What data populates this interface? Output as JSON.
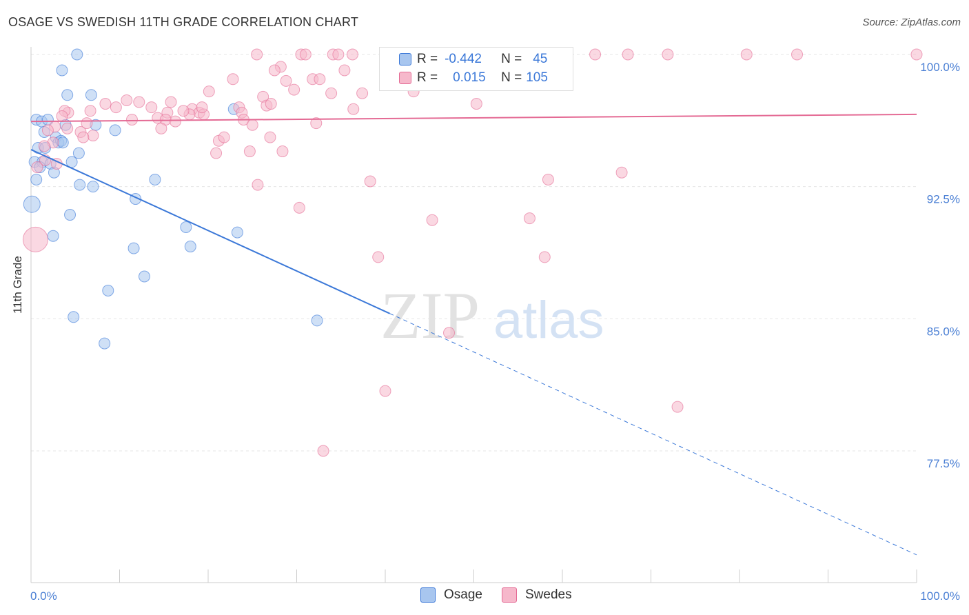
{
  "title": "OSAGE VS SWEDISH 11TH GRADE CORRELATION CHART",
  "source": "Source: ZipAtlas.com",
  "watermark": {
    "zip": "ZIP",
    "atlas": "atlas"
  },
  "legend_top": {
    "rows": [
      {
        "r_label": "R =",
        "r_value": "-0.442",
        "n_label": "N =",
        "n_value": "45",
        "color": "#a8c6ef"
      },
      {
        "r_label": "R =",
        "r_value": "0.015",
        "n_label": "N =",
        "n_value": "105",
        "color": "#f6b8cb"
      }
    ]
  },
  "legend_bottom": [
    {
      "label": "Osage",
      "color": "#a8c6ef"
    },
    {
      "label": "Swedes",
      "color": "#f6b8cb"
    }
  ],
  "colors": {
    "osage": "#3b78d8",
    "swedes": "#e46a94",
    "tick_text": "#4a7fd4"
  },
  "chart_data": {
    "type": "scatter",
    "title": "OSAGE VS SWEDISH 11TH GRADE CORRELATION CHART",
    "xlabel": "",
    "ylabel": "11th Grade",
    "xlim": [
      0,
      100
    ],
    "ylim": [
      71,
      100.5
    ],
    "x_tick_labels": [
      "0.0%",
      "100.0%"
    ],
    "y_ticks": [
      77.5,
      85.0,
      92.5,
      100.0
    ],
    "y_tick_labels": [
      "77.5%",
      "85.0%",
      "92.5%",
      "100.0%"
    ],
    "grid": true,
    "series": [
      {
        "name": "Osage",
        "color": "#a8c6ef",
        "stroke": "#3b78d8",
        "trend": {
          "x0": 0,
          "y0": 94.6,
          "x1": 40.5,
          "y1": 85.3,
          "dashed_to_x": 100,
          "dashed_to_y": 71.6
        },
        "points": [
          [
            5.2,
            100.0
          ],
          [
            3.5,
            99.1
          ],
          [
            4.1,
            97.7
          ],
          [
            6.8,
            97.7
          ],
          [
            0.6,
            96.3
          ],
          [
            1.2,
            96.2
          ],
          [
            1.9,
            96.3
          ],
          [
            3.9,
            96.0
          ],
          [
            7.3,
            96.0
          ],
          [
            9.5,
            95.7
          ],
          [
            1.5,
            95.6
          ],
          [
            2.8,
            95.3
          ],
          [
            3.1,
            95.0
          ],
          [
            3.4,
            95.1
          ],
          [
            3.6,
            95.0
          ],
          [
            0.8,
            94.7
          ],
          [
            1.6,
            94.7
          ],
          [
            5.4,
            94.4
          ],
          [
            0.4,
            93.9
          ],
          [
            1.3,
            93.9
          ],
          [
            2.2,
            93.8
          ],
          [
            4.6,
            93.9
          ],
          [
            1.0,
            93.6
          ],
          [
            2.6,
            93.3
          ],
          [
            0.6,
            92.9
          ],
          [
            5.5,
            92.6
          ],
          [
            7.0,
            92.5
          ],
          [
            14.0,
            92.9
          ],
          [
            11.8,
            91.8
          ],
          [
            0.1,
            91.5
          ],
          [
            4.4,
            90.9
          ],
          [
            17.5,
            90.2
          ],
          [
            23.3,
            89.9
          ],
          [
            2.5,
            89.7
          ],
          [
            11.6,
            89.0
          ],
          [
            18.0,
            89.1
          ],
          [
            12.8,
            87.4
          ],
          [
            8.7,
            86.6
          ],
          [
            4.8,
            85.1
          ],
          [
            32.3,
            84.9
          ],
          [
            8.3,
            83.6
          ],
          [
            22.9,
            96.9
          ]
        ]
      },
      {
        "name": "Swedes",
        "color": "#f6b8cb",
        "stroke": "#e46a94",
        "trend": {
          "x0": 0,
          "y0": 96.2,
          "x1": 100,
          "y1": 96.6
        },
        "points": [
          [
            25.5,
            100.0
          ],
          [
            30.5,
            100.0
          ],
          [
            31.0,
            100.0
          ],
          [
            34.1,
            100.0
          ],
          [
            34.7,
            100.0
          ],
          [
            36.3,
            100.0
          ],
          [
            41.0,
            100.0
          ],
          [
            46.2,
            100.0
          ],
          [
            48.7,
            100.0
          ],
          [
            53.4,
            100.0
          ],
          [
            55.4,
            100.0
          ],
          [
            56.5,
            100.0
          ],
          [
            58.5,
            100.0
          ],
          [
            63.7,
            100.0
          ],
          [
            67.4,
            100.0
          ],
          [
            71.9,
            100.0
          ],
          [
            80.8,
            100.0
          ],
          [
            86.5,
            100.0
          ],
          [
            100.0,
            100.0
          ],
          [
            28.2,
            99.3
          ],
          [
            27.5,
            99.1
          ],
          [
            35.4,
            99.1
          ],
          [
            22.8,
            98.6
          ],
          [
            31.8,
            98.6
          ],
          [
            32.6,
            98.6
          ],
          [
            28.8,
            98.5
          ],
          [
            40.5,
            98.5
          ],
          [
            20.1,
            97.9
          ],
          [
            29.7,
            98.0
          ],
          [
            33.9,
            97.8
          ],
          [
            37.4,
            97.8
          ],
          [
            43.2,
            97.9
          ],
          [
            26.2,
            97.6
          ],
          [
            10.8,
            97.4
          ],
          [
            12.2,
            97.3
          ],
          [
            8.4,
            97.2
          ],
          [
            15.8,
            97.3
          ],
          [
            9.6,
            97.0
          ],
          [
            13.6,
            97.0
          ],
          [
            26.6,
            97.1
          ],
          [
            27.1,
            97.2
          ],
          [
            23.5,
            97.0
          ],
          [
            36.4,
            96.9
          ],
          [
            50.3,
            97.2
          ],
          [
            6.7,
            96.8
          ],
          [
            4.2,
            96.7
          ],
          [
            3.8,
            96.8
          ],
          [
            15.4,
            96.7
          ],
          [
            18.2,
            96.9
          ],
          [
            19.0,
            96.7
          ],
          [
            23.8,
            96.7
          ],
          [
            17.9,
            96.6
          ],
          [
            19.5,
            96.6
          ],
          [
            3.5,
            96.5
          ],
          [
            11.4,
            96.3
          ],
          [
            14.3,
            96.4
          ],
          [
            15.2,
            96.3
          ],
          [
            16.3,
            96.2
          ],
          [
            24.0,
            96.3
          ],
          [
            6.3,
            96.1
          ],
          [
            2.7,
            95.9
          ],
          [
            32.2,
            96.1
          ],
          [
            25.0,
            96.0
          ],
          [
            14.7,
            95.8
          ],
          [
            5.6,
            95.6
          ],
          [
            4.1,
            95.8
          ],
          [
            1.9,
            95.7
          ],
          [
            7.0,
            95.4
          ],
          [
            5.9,
            95.3
          ],
          [
            2.5,
            95.0
          ],
          [
            21.2,
            95.1
          ],
          [
            27.0,
            95.3
          ],
          [
            1.5,
            94.8
          ],
          [
            24.7,
            94.5
          ],
          [
            28.4,
            94.5
          ],
          [
            1.6,
            94.0
          ],
          [
            20.9,
            94.4
          ],
          [
            21.8,
            95.3
          ],
          [
            0.7,
            93.6
          ],
          [
            2.9,
            93.8
          ],
          [
            66.7,
            93.3
          ],
          [
            25.6,
            92.6
          ],
          [
            38.3,
            92.8
          ],
          [
            58.4,
            92.9
          ],
          [
            30.3,
            91.3
          ],
          [
            45.3,
            90.6
          ],
          [
            56.3,
            90.7
          ],
          [
            0.5,
            89.5
          ],
          [
            39.2,
            88.5
          ],
          [
            58.0,
            88.5
          ],
          [
            47.2,
            84.2
          ],
          [
            40.0,
            80.9
          ],
          [
            73.0,
            80.0
          ],
          [
            33.0,
            77.5
          ],
          [
            19.3,
            97.0
          ],
          [
            17.2,
            96.8
          ]
        ]
      }
    ]
  }
}
